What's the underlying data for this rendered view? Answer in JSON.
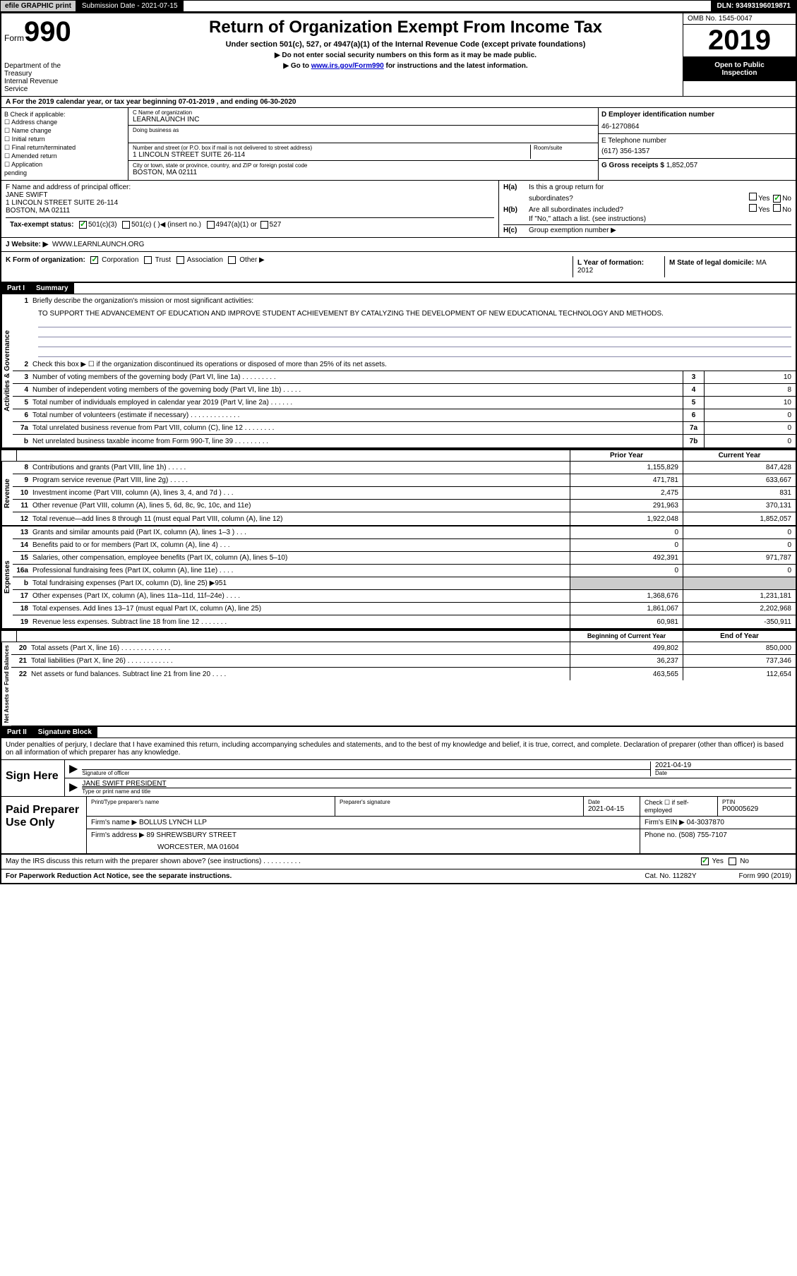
{
  "topbar": {
    "efile": "efile GRAPHIC print",
    "submission": "Submission Date - 2021-07-15",
    "dln": "DLN: 93493196019871"
  },
  "header": {
    "form_label": "Form",
    "form_num": "990",
    "dept1": "Department of the",
    "dept2": "Treasury",
    "dept3": "Internal Revenue",
    "dept4": "Service",
    "title": "Return of Organization Exempt From Income Tax",
    "subtitle": "Under section 501(c), 527, or 4947(a)(1) of the Internal Revenue Code (except private foundations)",
    "arrow1": "▶ Do not enter social security numbers on this form as it may be made public.",
    "arrow2_pre": "▶ Go to ",
    "arrow2_link": "www.irs.gov/Form990",
    "arrow2_post": " for instructions and the latest information.",
    "omb": "OMB No. 1545-0047",
    "year": "2019",
    "open1": "Open to Public",
    "open2": "Inspection"
  },
  "section_a": "A For the 2019 calendar year, or tax year beginning 07-01-2019   , and ending 06-30-2020",
  "b": {
    "hdr": "B Check if applicable:",
    "i1": "Address change",
    "i2": "Name change",
    "i3": "Initial return",
    "i4": "Final return/terminated",
    "i5": "Amended return",
    "i6": "Application",
    "i7": "pending"
  },
  "c": {
    "name_lbl": "C Name of organization",
    "name": "LEARNLAUNCH INC",
    "dba_lbl": "Doing business as",
    "addr_lbl": "Number and street (or P.O. box if mail is not delivered to street address)",
    "room_lbl": "Room/suite",
    "addr": "1 LINCOLN STREET SUITE 26-114",
    "city_lbl": "City or town, state or province, country, and ZIP or foreign postal code",
    "city": "BOSTON, MA  02111"
  },
  "d": {
    "ein_lbl": "D Employer identification number",
    "ein": "46-1270864",
    "tel_lbl": "E Telephone number",
    "tel": "(617) 356-1357",
    "gross_lbl": "G Gross receipts $",
    "gross": "1,852,057"
  },
  "f": {
    "lbl": "F  Name and address of principal officer:",
    "name": "JANE SWIFT",
    "addr1": "1 LINCOLN STREET SUITE 26-114",
    "addr2": "BOSTON, MA  02111"
  },
  "h": {
    "ha": "Is this a group return for",
    "ha2": "subordinates?",
    "hb": "Are all subordinates included?",
    "note": "If \"No,\" attach a list. (see instructions)",
    "hc": "Group exemption number ▶",
    "yes": "Yes",
    "no": "No"
  },
  "i": {
    "lbl": "Tax-exempt status:",
    "o1": "501(c)(3)",
    "o2": "501(c) (  )",
    "o2b": "◀ (insert no.)",
    "o3": "4947(a)(1) or",
    "o4": "527"
  },
  "j": {
    "lbl": "J   Website: ▶",
    "val": "WWW.LEARNLAUNCH.ORG"
  },
  "k": {
    "lbl": "K Form of organization:",
    "o1": "Corporation",
    "o2": "Trust",
    "o3": "Association",
    "o4": "Other ▶"
  },
  "l": {
    "lbl": "L Year of formation:",
    "val": "2012"
  },
  "m": {
    "lbl": "M State of legal domicile:",
    "val": "MA"
  },
  "part1": {
    "hdr": "Part I",
    "title": "Summary"
  },
  "p1_l1": {
    "num": "1",
    "text": "Briefly describe the organization's mission or most significant activities:",
    "mission": "TO SUPPORT THE ADVANCEMENT OF EDUCATION AND IMPROVE STUDENT ACHIEVEMENT BY CATALYZING THE DEVELOPMENT OF NEW EDUCATIONAL TECHNOLOGY AND METHODS."
  },
  "p1_l2": {
    "num": "2",
    "text": "Check this box ▶ ☐  if the organization discontinued its operations or disposed of more than 25% of its net assets."
  },
  "govlines": [
    {
      "n": "3",
      "t": "Number of voting members of the governing body (Part VI, line 1a)   .    .    .    .    .    .    .    .    .",
      "b": "3",
      "v": "10"
    },
    {
      "n": "4",
      "t": "Number of independent voting members of the governing body (Part VI, line 1b)   .    .    .    .    .",
      "b": "4",
      "v": "8"
    },
    {
      "n": "5",
      "t": "Total number of individuals employed in calendar year 2019 (Part V, line 2a)   .    .    .    .    .    .",
      "b": "5",
      "v": "10"
    },
    {
      "n": "6",
      "t": "Total number of volunteers (estimate if necessary)    .    .    .    .    .    .    .    .    .    .    .    .    .",
      "b": "6",
      "v": "0"
    },
    {
      "n": "7a",
      "t": "Total unrelated business revenue from Part VIII, column (C), line 12   .    .    .    .    .    .    .    .",
      "b": "7a",
      "v": "0"
    },
    {
      "n": "b",
      "t": "Net unrelated business taxable income from Form 990-T, line 39   .    .    .    .    .    .    .    .    .",
      "b": "7b",
      "v": "0"
    }
  ],
  "hdr_prior": "Prior Year",
  "hdr_curr": "Current Year",
  "revenue": [
    {
      "n": "8",
      "t": "Contributions and grants (Part VIII, line 1h)    .    .    .    .    .",
      "p": "1,155,829",
      "c": "847,428"
    },
    {
      "n": "9",
      "t": "Program service revenue (Part VIII, line 2g)    .    .    .    .    .",
      "p": "471,781",
      "c": "633,667"
    },
    {
      "n": "10",
      "t": "Investment income (Part VIII, column (A), lines 3, 4, and 7d )    .    .    .",
      "p": "2,475",
      "c": "831"
    },
    {
      "n": "11",
      "t": "Other revenue (Part VIII, column (A), lines 5, 6d, 8c, 9c, 10c, and 11e)",
      "p": "291,963",
      "c": "370,131"
    },
    {
      "n": "12",
      "t": "Total revenue—add lines 8 through 11 (must equal Part VIII, column (A), line 12)",
      "p": "1,922,048",
      "c": "1,852,057"
    }
  ],
  "expenses": [
    {
      "n": "13",
      "t": "Grants and similar amounts paid (Part IX, column (A), lines 1–3 )   .    .    .",
      "p": "0",
      "c": "0"
    },
    {
      "n": "14",
      "t": "Benefits paid to or for members (Part IX, column (A), line 4)   .    .    .",
      "p": "0",
      "c": "0"
    },
    {
      "n": "15",
      "t": "Salaries, other compensation, employee benefits (Part IX, column (A), lines 5–10)",
      "p": "492,391",
      "c": "971,787"
    },
    {
      "n": "16a",
      "t": "Professional fundraising fees (Part IX, column (A), line 11e)   .    .    .    .",
      "p": "0",
      "c": "0"
    },
    {
      "n": "b",
      "t": "Total fundraising expenses (Part IX, column (D), line 25) ▶951",
      "p": "",
      "c": "",
      "grey": true
    },
    {
      "n": "17",
      "t": "Other expenses (Part IX, column (A), lines 11a–11d, 11f–24e)   .    .    .    .",
      "p": "1,368,676",
      "c": "1,231,181"
    },
    {
      "n": "18",
      "t": "Total expenses. Add lines 13–17 (must equal Part IX, column (A), line 25)",
      "p": "1,861,067",
      "c": "2,202,968"
    },
    {
      "n": "19",
      "t": "Revenue less expenses. Subtract line 18 from line 12   .    .    .    .    .    .    .",
      "p": "60,981",
      "c": "-350,911"
    }
  ],
  "hdr_bcy": "Beginning of Current Year",
  "hdr_eoy": "End of Year",
  "netassets": [
    {
      "n": "20",
      "t": "Total assets (Part X, line 16)   .    .    .    .    .    .    .    .    .    .    .    .    .",
      "p": "499,802",
      "c": "850,000"
    },
    {
      "n": "21",
      "t": "Total liabilities (Part X, line 26)   .    .    .    .    .    .    .    .    .    .    .    .",
      "p": "36,237",
      "c": "737,346"
    },
    {
      "n": "22",
      "t": "Net assets or fund balances. Subtract line 21 from line 20   .    .    .    .",
      "p": "463,565",
      "c": "112,654"
    }
  ],
  "tabs": {
    "gov": "Activities & Governance",
    "rev": "Revenue",
    "exp": "Expenses",
    "net": "Net Assets or Fund Balances"
  },
  "part2": {
    "hdr": "Part II",
    "title": "Signature Block"
  },
  "sig_intro": "Under penalties of perjury, I declare that I have examined this return, including accompanying schedules and statements, and to the best of my knowledge and belief, it is true, correct, and complete. Declaration of preparer (other than officer) is based on all information of which preparer has any knowledge.",
  "sign": {
    "label": "Sign Here",
    "sig_officer_lbl": "Signature of officer",
    "date_lbl": "Date",
    "date_val": "2021-04-19",
    "name": "JANE SWIFT PRESIDENT",
    "name_lbl": "Type or print name and title"
  },
  "paid": {
    "label": "Paid Preparer Use Only",
    "r1c1": "Print/Type preparer's name",
    "r1c2": "Preparer's signature",
    "r1c3_lbl": "Date",
    "r1c3": "2021-04-15",
    "r1c4": "Check ☐  if self-employed",
    "r1c5_lbl": "PTIN",
    "r1c5": "P00005629",
    "r2_lbl": "Firm's name    ▶",
    "r2": "BOLLUS LYNCH LLP",
    "r2b_lbl": "Firm's EIN ▶",
    "r2b": "04-3037870",
    "r3_lbl": "Firm's address ▶",
    "r3a": "89 SHREWSBURY STREET",
    "r3b": "WORCESTER, MA  01604",
    "r3c_lbl": "Phone no.",
    "r3c": "(508) 755-7107"
  },
  "discuss": "May the IRS discuss this return with the preparer shown above? (see instructions)    .    .    .    .    .    .    .    .    .    .",
  "footer": {
    "left": "For Paperwork Reduction Act Notice, see the separate instructions.",
    "mid": "Cat. No. 11282Y",
    "right": "Form 990 (2019)"
  }
}
